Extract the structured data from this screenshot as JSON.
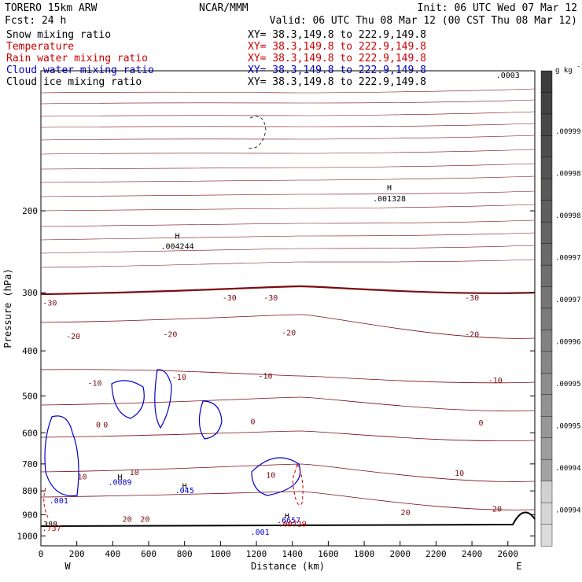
{
  "header": {
    "model": "TORERO  15km ARW",
    "org": "NCAR/MMM",
    "init": "Init: 06 UTC Wed 07 Mar 12",
    "fcst": "Fcst:    24 h",
    "valid": "Valid: 06 UTC Thu 08 Mar 12 (00 CST Thu 08 Mar 12)",
    "fields": [
      {
        "name": "Snow mixing ratio",
        "xy": "XY=  38.3,149.8 to 222.9,149.8",
        "color": "#000000"
      },
      {
        "name": "Temperature",
        "xy": "XY=  38.3,149.8 to 222.9,149.8",
        "color": "#cc0000"
      },
      {
        "name": "Rain water mixing ratio",
        "xy": "XY=  38.3,149.8 to 222.9,149.8",
        "color": "#cc0000"
      },
      {
        "name": "Cloud water mixing ratio",
        "xy": "XY=  38.3,149.8 to 222.9,149.8",
        "color": "#0000cc"
      },
      {
        "name": "Cloud ice mixing ratio",
        "xy": "XY=  38.3,149.8 to 222.9,149.8",
        "color": "#000000"
      }
    ]
  },
  "chart_data": {
    "type": "contour-cross-section",
    "xlabel": "Distance (km)",
    "ylabel": "Pressure (hPa)",
    "x_ticks": [
      0,
      200,
      400,
      600,
      800,
      1000,
      1200,
      1400,
      1600,
      1800,
      2000,
      2200,
      2400,
      2600
    ],
    "y_ticks": [
      200,
      300,
      400,
      500,
      600,
      700,
      800,
      900,
      1000
    ],
    "xlim": [
      0,
      2750
    ],
    "ylim": [
      1050,
      100
    ],
    "y_scale": "log",
    "west_label": "W",
    "east_label": "E",
    "colorbar": {
      "unit": "g kg",
      "unit_exp": "-1",
      "labels": [
        ".00999",
        ".00998",
        ".00998",
        ".00997",
        ".00997",
        ".00996",
        ".00995",
        ".00995",
        ".00994",
        ".00994"
      ]
    },
    "temperature_labels": [
      {
        "text": "-30",
        "x": 50,
        "p": 315
      },
      {
        "text": "-30",
        "x": 1050,
        "p": 307
      },
      {
        "text": "-30",
        "x": 1280,
        "p": 307
      },
      {
        "text": "-30",
        "x": 2400,
        "p": 307
      },
      {
        "text": "-20",
        "x": 180,
        "p": 371
      },
      {
        "text": "-20",
        "x": 720,
        "p": 368
      },
      {
        "text": "-20",
        "x": 1380,
        "p": 365
      },
      {
        "text": "-20",
        "x": 2400,
        "p": 368
      },
      {
        "text": "-10",
        "x": 300,
        "p": 468
      },
      {
        "text": "-10",
        "x": 770,
        "p": 455
      },
      {
        "text": "-10",
        "x": 1250,
        "p": 452
      },
      {
        "text": "-10",
        "x": 2530,
        "p": 462
      },
      {
        "text": "0",
        "x": 320,
        "p": 575
      },
      {
        "text": "0",
        "x": 360,
        "p": 575
      },
      {
        "text": "0",
        "x": 1180,
        "p": 566
      },
      {
        "text": "0",
        "x": 2450,
        "p": 570
      },
      {
        "text": "10",
        "x": 230,
        "p": 744
      },
      {
        "text": "10",
        "x": 520,
        "p": 728
      },
      {
        "text": "10",
        "x": 1280,
        "p": 738
      },
      {
        "text": "10",
        "x": 2330,
        "p": 731
      },
      {
        "text": "20",
        "x": 480,
        "p": 918
      },
      {
        "text": "20",
        "x": 580,
        "p": 918
      },
      {
        "text": "20",
        "x": 2030,
        "p": 888
      },
      {
        "text": "20",
        "x": 2540,
        "p": 873
      }
    ],
    "annotations": [
      {
        "text": "H",
        "x": 1940,
        "p": 178
      },
      {
        "text": ".001328",
        "x": 1940,
        "p": 188
      },
      {
        "text": "H",
        "x": 760,
        "p": 226
      },
      {
        "text": ".004244",
        "x": 760,
        "p": 238
      },
      {
        "text": "H",
        "x": 440,
        "p": 746
      },
      {
        "text": ".0089",
        "x": 440,
        "p": 764
      },
      {
        "text": "H",
        "x": 800,
        "p": 780
      },
      {
        "text": ".045",
        "x": 800,
        "p": 797
      },
      {
        "text": ".001",
        "x": 100,
        "p": 837
      },
      {
        "text": ".388",
        "x": 40,
        "p": 941
      },
      {
        "text": ".737",
        "x": 60,
        "p": 961
      },
      {
        "text": "H",
        "x": 1370,
        "p": 903
      },
      {
        "text": ".6657",
        "x": 1380,
        "p": 924
      },
      {
        "text": ".00729",
        "x": 1400,
        "p": 939
      },
      {
        "text": ".001",
        "x": 1220,
        "p": 978
      },
      {
        "text": ".0003",
        "x": 2600,
        "p": 102
      }
    ],
    "temperature_color": "#7a0c12",
    "rain_color": "#cc0000",
    "cloud_water_color": "#0000cc"
  }
}
